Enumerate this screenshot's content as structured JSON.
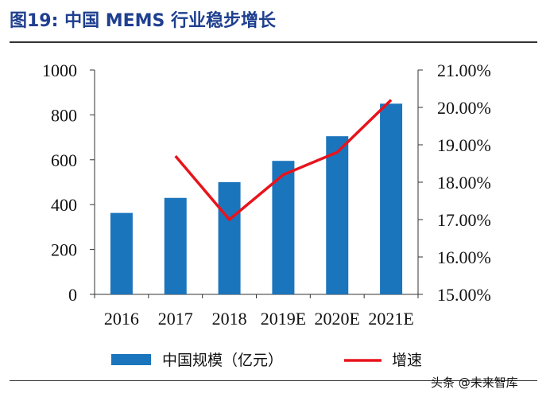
{
  "figure": {
    "title": "图19:  中国 MEMS 行业稳步增长"
  },
  "watermark": "头条 @未来智库",
  "colors": {
    "bar": "#1b75bc",
    "line": "#e8141c",
    "title": "#1f3f8f"
  },
  "chart_data": {
    "type": "bar",
    "categories": [
      "2016",
      "2017",
      "2018",
      "2019E",
      "2020E",
      "2021E"
    ],
    "left_axis": {
      "min": 0,
      "max": 1000,
      "step": 200,
      "ticks": [
        "0",
        "200",
        "400",
        "600",
        "800",
        "1000"
      ]
    },
    "right_axis": {
      "min": 15,
      "max": 21,
      "step": 1,
      "ticks": [
        "15.00%",
        "16.00%",
        "17.00%",
        "18.00%",
        "19.00%",
        "20.00%",
        "21.00%"
      ]
    },
    "series": [
      {
        "name": "中国规模（亿元）",
        "type": "bar",
        "axis": "left",
        "values": [
          363,
          430,
          500,
          595,
          705,
          850
        ]
      },
      {
        "name": "增速",
        "type": "line",
        "axis": "right",
        "values": [
          null,
          18.7,
          17.0,
          18.2,
          18.8,
          20.2
        ]
      }
    ],
    "grid": false,
    "legend": "bottom"
  }
}
